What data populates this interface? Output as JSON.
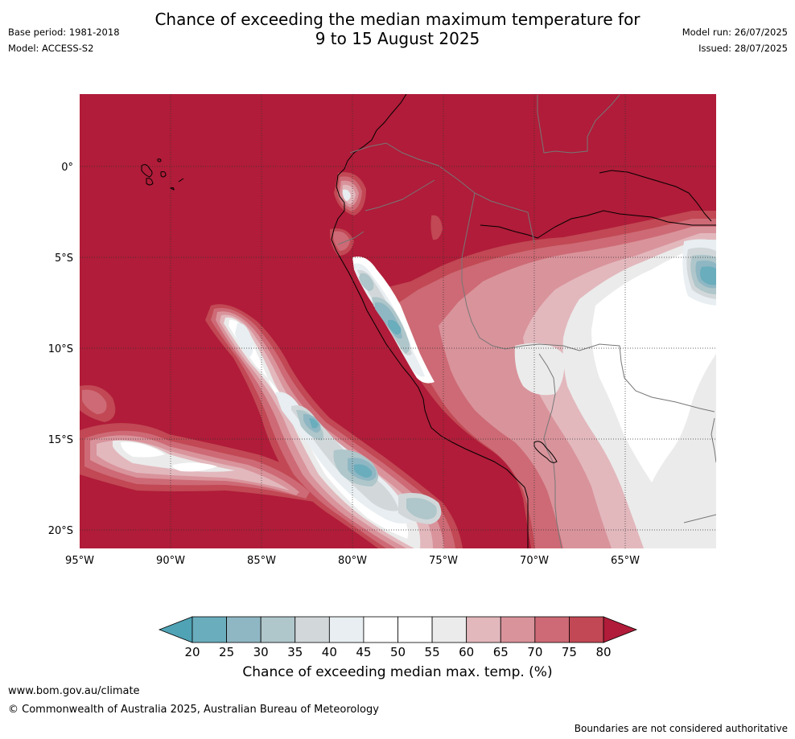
{
  "header": {
    "title_line1": "Chance of exceeding the median maximum temperature for",
    "title_line2": "9 to 15 August 2025",
    "base_period": "Base period: 1981-2018",
    "model": "Model: ACCESS-S2",
    "model_run": "Model run: 26/07/2025",
    "issued": "Issued: 28/07/2025"
  },
  "map": {
    "lat_labels": [
      "0°",
      "5°S",
      "10°S",
      "15°S",
      "20°S"
    ],
    "lon_labels": [
      "95°W",
      "90°W",
      "85°W",
      "80°W",
      "75°W",
      "70°W",
      "65°W"
    ],
    "background_category": "80+",
    "colors": {
      "c80": "#b01c39",
      "c75": "#c14854",
      "c70": "#cd6a75",
      "c65": "#d9939b",
      "c60": "#e2b8bd",
      "c55": "#ebebeb",
      "c50": "#ffffff",
      "c45": "#e8eef1",
      "c40": "#d2d8da",
      "c35": "#afc6ca",
      "c30": "#8fb7c3",
      "c25": "#6aadbc",
      "c20": "#4fa3b5"
    }
  },
  "colorbar": {
    "ticks": [
      "20",
      "25",
      "30",
      "35",
      "40",
      "45",
      "50",
      "55",
      "60",
      "65",
      "70",
      "75",
      "80"
    ],
    "colors": [
      "#6aadbc",
      "#8fb7c3",
      "#afc6ca",
      "#d2d8da",
      "#e8eef1",
      "#ffffff",
      "#ffffff",
      "#ebebeb",
      "#e2b8bd",
      "#d9939b",
      "#cd6a75",
      "#c14854"
    ],
    "under_color": "#4fa3b5",
    "over_color": "#b01c39",
    "label": "Chance of exceeding median max. temp. (%)"
  },
  "footer": {
    "website": "www.bom.gov.au/climate",
    "copyright": "© Commonwealth of Australia 2025, Australian Bureau of Meteorology",
    "disclaimer": "Boundaries are not considered authoritative"
  }
}
